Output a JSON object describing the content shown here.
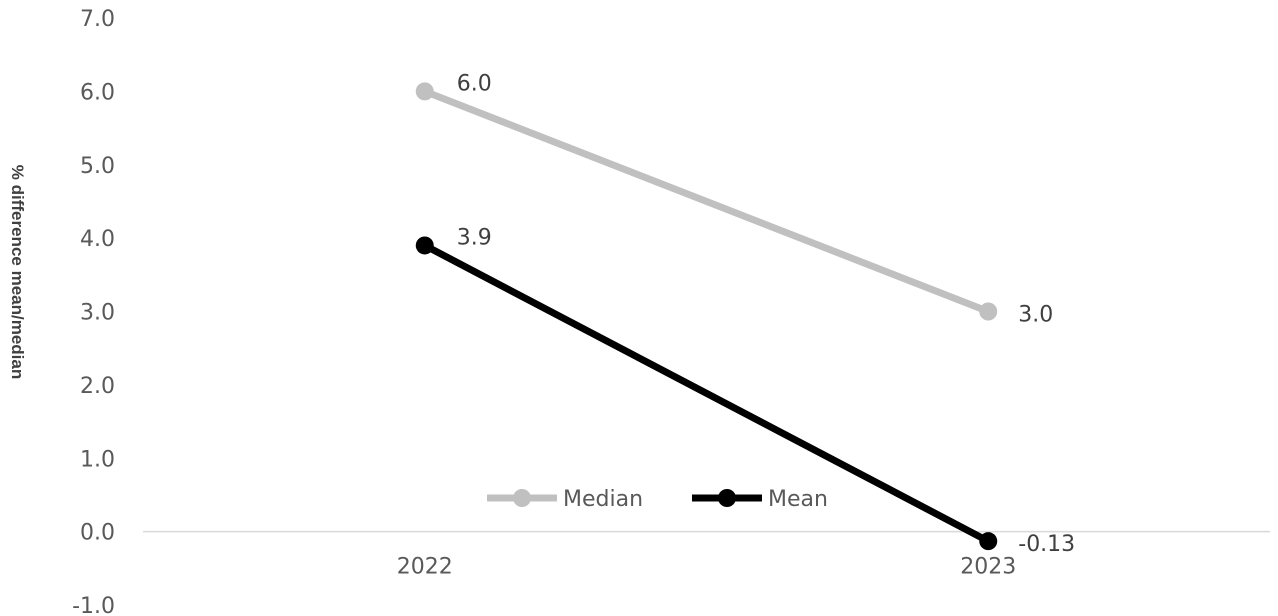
{
  "chart_data": {
    "type": "line",
    "categories": [
      "2022",
      "2023"
    ],
    "series": [
      {
        "name": "Median",
        "values": [
          6.0,
          3.0
        ],
        "labels": [
          "6.0",
          "3.0"
        ],
        "color": "#c0c0c0"
      },
      {
        "name": "Mean",
        "values": [
          3.9,
          -0.13
        ],
        "labels": [
          "3.9",
          "-0.13"
        ],
        "color": "#000000"
      }
    ],
    "title": "",
    "xlabel": "",
    "ylabel": "% difference mean/median",
    "ylim": [
      -1.0,
      7.0
    ],
    "yticks": [
      "-1.0",
      "0.0",
      "1.0",
      "2.0",
      "3.0",
      "4.0",
      "5.0",
      "6.0",
      "7.0"
    ],
    "grid": false,
    "legend_position": "bottom-center"
  }
}
